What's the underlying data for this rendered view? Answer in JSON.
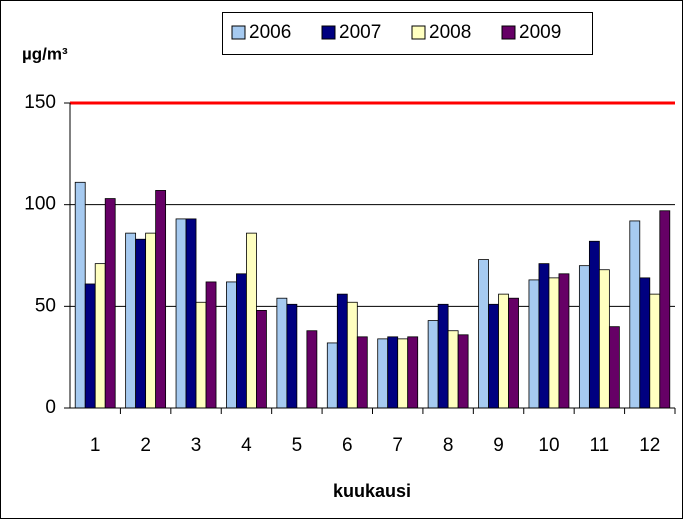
{
  "chart_data": {
    "type": "bar",
    "y_label": "µg/m³",
    "x_label": "kuukausi",
    "categories": [
      "1",
      "2",
      "3",
      "4",
      "5",
      "6",
      "7",
      "8",
      "9",
      "10",
      "11",
      "12"
    ],
    "series": [
      {
        "name": "2006",
        "color": "#a6caf0",
        "values": [
          111,
          86,
          93,
          62,
          54,
          32,
          34,
          43,
          73,
          63,
          70,
          92
        ]
      },
      {
        "name": "2007",
        "color": "#000080",
        "values": [
          61,
          83,
          93,
          66,
          51,
          56,
          35,
          51,
          51,
          71,
          82,
          64
        ]
      },
      {
        "name": "2008",
        "color": "#ffffc0",
        "values": [
          71,
          86,
          52,
          86,
          null,
          52,
          34,
          38,
          56,
          64,
          68,
          56
        ]
      },
      {
        "name": "2009",
        "color": "#660066",
        "values": [
          103,
          107,
          62,
          48,
          38,
          35,
          35,
          36,
          54,
          66,
          40,
          97
        ]
      }
    ],
    "ylim": [
      0,
      150
    ],
    "yticks": [
      0,
      50,
      100,
      150
    ],
    "grid": true,
    "limit_line": {
      "value": 150,
      "color": "#ff0000"
    },
    "legend": "top"
  }
}
